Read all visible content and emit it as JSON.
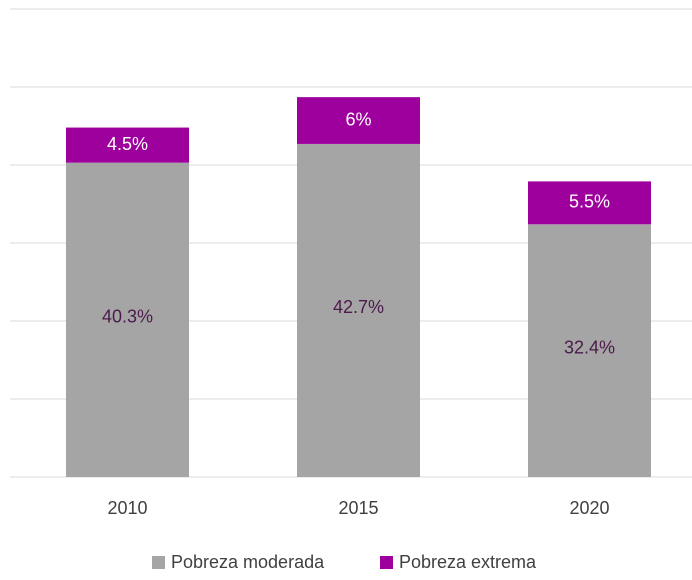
{
  "chart_data": {
    "type": "stacked_bar",
    "categories": [
      "2010",
      "2015",
      "2020"
    ],
    "series": [
      {
        "name": "Pobreza moderada",
        "color": "#a5a5a5",
        "values": [
          40.3,
          42.7,
          32.4
        ],
        "value_labels": [
          "40.3%",
          "42.7%",
          "32.4%"
        ]
      },
      {
        "name": "Pobreza extrema",
        "color": "#9e009e",
        "values": [
          4.5,
          6,
          5.5
        ],
        "value_labels": [
          "4.5%",
          "6%",
          "5.5%"
        ]
      }
    ],
    "ylim": [
      0,
      60
    ],
    "yticks": [
      0,
      10,
      20,
      30,
      40,
      50,
      60
    ],
    "grid": true,
    "legend": "bottom"
  }
}
